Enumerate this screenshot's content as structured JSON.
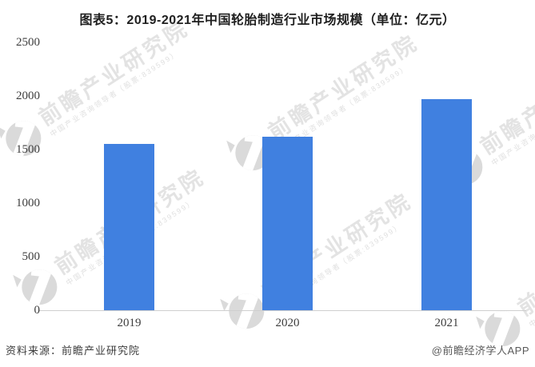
{
  "title": "图表5：2019-2021年中国轮胎制造行业市场规模（单位：亿元）",
  "chart_data": {
    "type": "bar",
    "title": "图表5：2019-2021年中国轮胎制造行业市场规模（单位：亿元）",
    "unit": "亿元",
    "categories": [
      "2019",
      "2020",
      "2021"
    ],
    "values": [
      1550,
      1620,
      1970
    ],
    "xlabel": "",
    "ylabel": "",
    "ylim": [
      0,
      2500
    ],
    "yticks": [
      0,
      500,
      1000,
      1500,
      2000,
      2500
    ],
    "bar_color": "#4080E0",
    "grid": false,
    "legend": false
  },
  "footer": {
    "source_label": "资料来源：前瞻产业研究院",
    "credit_label": "@前瞻经济学人APP"
  },
  "watermark": {
    "brand_text": "前瞻产业研究院",
    "tagline_text": "中国产业咨询领导者（股票:839599）",
    "color": "#e3e3e3"
  }
}
